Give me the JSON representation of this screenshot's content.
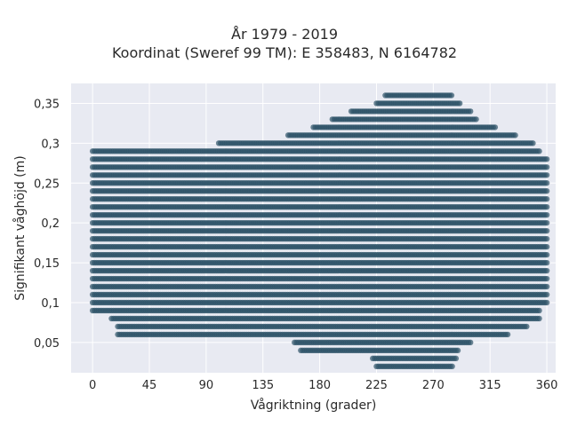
{
  "title_line1": "År 1979 - 2019",
  "title_line2": "Koordinat (Sweref 99 TM): E 358483, N 6164782",
  "chart_data": {
    "type": "scatter",
    "xlabel": "Vågriktning (grader)",
    "ylabel": "Signifikant våghöjd (m)",
    "xlim": [
      -17,
      367
    ],
    "ylim": [
      0.012,
      0.375
    ],
    "x_ticks": [
      0,
      45,
      90,
      135,
      180,
      225,
      270,
      315,
      360
    ],
    "y_ticks": [
      0.05,
      0.1,
      0.15,
      0.2,
      0.25,
      0.3,
      0.35
    ],
    "y_tick_labels": [
      "0,05",
      "0,1",
      "0,15",
      "0,2",
      "0,25",
      "0,3",
      "0,35"
    ],
    "grid": true,
    "marker_color": "#2e5268",
    "plot_background": "#e8eaf2",
    "y_step": 0.01,
    "x_range_by_height": [
      {
        "y": 0.02,
        "x": [
          225,
          285
        ]
      },
      {
        "y": 0.03,
        "x": [
          222,
          288
        ]
      },
      {
        "y": 0.04,
        "x": [
          165,
          290
        ]
      },
      {
        "y": 0.05,
        "x": [
          160,
          300
        ]
      },
      {
        "y": 0.06,
        "x": [
          20,
          330
        ]
      },
      {
        "y": 0.07,
        "x": [
          20,
          345
        ]
      },
      {
        "y": 0.08,
        "x": [
          15,
          355
        ]
      },
      {
        "y": 0.09,
        "x": [
          0,
          355
        ]
      },
      {
        "y": 0.1,
        "x": [
          0,
          360
        ]
      },
      {
        "y": 0.11,
        "x": [
          0,
          360
        ]
      },
      {
        "y": 0.12,
        "x": [
          0,
          360
        ]
      },
      {
        "y": 0.13,
        "x": [
          0,
          360
        ]
      },
      {
        "y": 0.14,
        "x": [
          0,
          360
        ]
      },
      {
        "y": 0.15,
        "x": [
          0,
          360
        ]
      },
      {
        "y": 0.16,
        "x": [
          0,
          360
        ]
      },
      {
        "y": 0.17,
        "x": [
          0,
          360
        ]
      },
      {
        "y": 0.18,
        "x": [
          0,
          360
        ]
      },
      {
        "y": 0.19,
        "x": [
          0,
          360
        ]
      },
      {
        "y": 0.2,
        "x": [
          0,
          360
        ]
      },
      {
        "y": 0.21,
        "x": [
          0,
          360
        ]
      },
      {
        "y": 0.22,
        "x": [
          0,
          360
        ]
      },
      {
        "y": 0.23,
        "x": [
          0,
          360
        ]
      },
      {
        "y": 0.24,
        "x": [
          0,
          360
        ]
      },
      {
        "y": 0.25,
        "x": [
          0,
          360
        ]
      },
      {
        "y": 0.26,
        "x": [
          0,
          360
        ]
      },
      {
        "y": 0.27,
        "x": [
          0,
          360
        ]
      },
      {
        "y": 0.28,
        "x": [
          0,
          360
        ]
      },
      {
        "y": 0.29,
        "x": [
          0,
          355
        ]
      },
      {
        "y": 0.3,
        "x": [
          100,
          350
        ]
      },
      {
        "y": 0.31,
        "x": [
          155,
          335
        ]
      },
      {
        "y": 0.32,
        "x": [
          175,
          320
        ]
      },
      {
        "y": 0.33,
        "x": [
          190,
          305
        ]
      },
      {
        "y": 0.34,
        "x": [
          205,
          300
        ]
      },
      {
        "y": 0.35,
        "x": [
          225,
          292
        ]
      },
      {
        "y": 0.36,
        "x": [
          232,
          285
        ]
      }
    ]
  }
}
